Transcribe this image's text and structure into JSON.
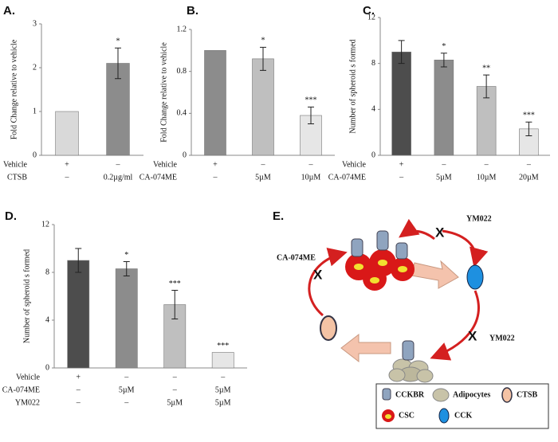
{
  "chart_data": [
    {
      "type": "bar",
      "title": "A.",
      "ylabel": "Fold Change relative to vehicle",
      "values": [
        1.0,
        2.1
      ],
      "errors": [
        null,
        0.35
      ],
      "annotations": [
        null,
        "*"
      ],
      "colors": [
        "#d9d9d9",
        "#8c8c8c"
      ],
      "rows": [
        {
          "label": "Vehicle",
          "entries": [
            "+",
            "–"
          ]
        },
        {
          "label": "CTSB",
          "entries": [
            "–",
            "0.2µg/ml"
          ]
        }
      ],
      "ylim": [
        0,
        3
      ],
      "yticks": [
        0,
        1,
        2,
        3
      ]
    },
    {
      "type": "bar",
      "title": "B.",
      "ylabel": "Fold Change relative to vehicle",
      "values": [
        1.0,
        0.92,
        0.38
      ],
      "errors": [
        null,
        0.11,
        0.08
      ],
      "annotations": [
        null,
        "*",
        "***"
      ],
      "colors": [
        "#8c8c8c",
        "#bfbfbf",
        "#e6e6e6"
      ],
      "rows": [
        {
          "label": "Vehicle",
          "entries": [
            "+",
            "–",
            "–"
          ]
        },
        {
          "label": "CA-074ME",
          "entries": [
            "–",
            "5µM",
            "10µM"
          ]
        }
      ],
      "ylim": [
        0,
        1.2
      ],
      "yticks": [
        0,
        0.4,
        0.8,
        1.2
      ]
    },
    {
      "type": "bar",
      "title": "C.",
      "ylabel": "Number of spheroid s formed",
      "values": [
        9.0,
        8.3,
        6.0,
        2.3
      ],
      "errors": [
        1.0,
        0.6,
        1.0,
        0.6
      ],
      "annotations": [
        null,
        "*",
        "**",
        "***"
      ],
      "colors": [
        "#4d4d4d",
        "#8c8c8c",
        "#bfbfbf",
        "#e6e6e6"
      ],
      "rows": [
        {
          "label": "Vehicle",
          "entries": [
            "+",
            "–",
            "–",
            "–"
          ]
        },
        {
          "label": "CA-074ME",
          "entries": [
            "–",
            "5µM",
            "10µM",
            "20µM"
          ]
        }
      ],
      "ylim": [
        0,
        12
      ],
      "yticks": [
        0,
        4,
        8,
        12
      ]
    },
    {
      "type": "bar",
      "title": "D.",
      "ylabel": "Number of spheroid s formed",
      "values": [
        9.0,
        8.3,
        5.3,
        1.3
      ],
      "errors": [
        1.0,
        0.6,
        1.2,
        null
      ],
      "annotations": [
        null,
        "*",
        "***",
        "***"
      ],
      "colors": [
        "#4d4d4d",
        "#8c8c8c",
        "#bfbfbf",
        "#e6e6e6"
      ],
      "rows": [
        {
          "label": "Vehicle",
          "entries": [
            "+",
            "–",
            "–",
            "–"
          ]
        },
        {
          "label": "CA-074ME",
          "entries": [
            "–",
            "5µM",
            "–",
            "5µM"
          ]
        },
        {
          "label": "YM022",
          "entries": [
            "–",
            "–",
            "5µM",
            "5µM"
          ]
        }
      ],
      "ylim": [
        0,
        12
      ],
      "yticks": [
        0,
        4,
        8,
        12
      ]
    }
  ],
  "diagram": {
    "title": "E.",
    "inhibitor_top": "YM022",
    "inhibitor_left": "CA-074ME",
    "inhibitor_right": "YM022",
    "block_marks": [
      "X",
      "X",
      "X"
    ],
    "legend": [
      "CCKBR",
      "Adipocytes",
      "CTSB",
      "CSC",
      "CCK"
    ]
  }
}
